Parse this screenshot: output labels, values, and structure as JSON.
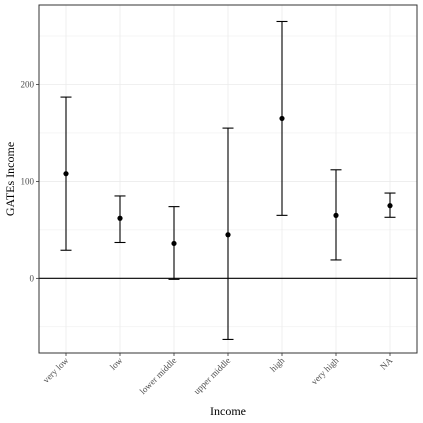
{
  "chart_data": {
    "type": "errorbar",
    "title": "",
    "xlabel": "Income",
    "ylabel": "GATEs Income",
    "categories": [
      "very low",
      "low",
      "lower middle",
      "upper middle",
      "high",
      "very high",
      "NA"
    ],
    "estimates": [
      108,
      62,
      36,
      45,
      165,
      65,
      75
    ],
    "lower": [
      29,
      37,
      -1,
      -63,
      65,
      19,
      63
    ],
    "upper": [
      187,
      85,
      74,
      155,
      265,
      112,
      88
    ],
    "yticks": [
      0,
      100,
      200
    ],
    "ylim": [
      -77,
      282
    ],
    "reference_line": 0,
    "grid": true,
    "legend": "none"
  }
}
